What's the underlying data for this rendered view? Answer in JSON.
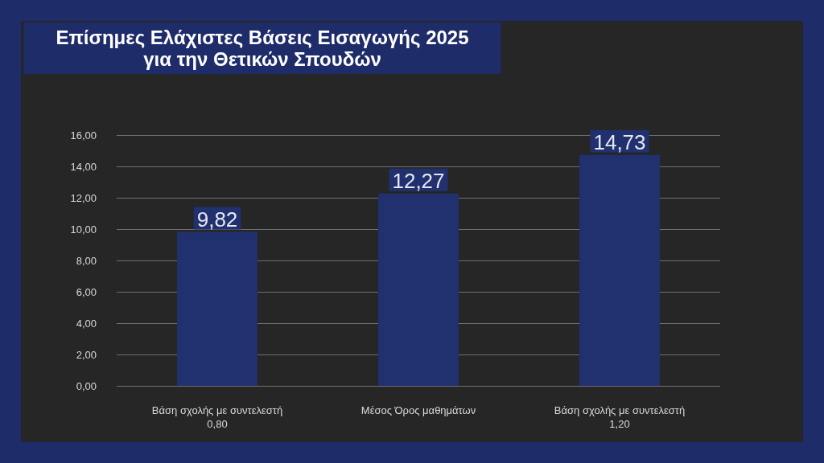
{
  "chart_data": {
    "type": "bar",
    "title": "Επίσημες Ελάχιστες Βάσεις Εισαγωγής 2025\nγια την Θετικών Σπουδών",
    "categories": [
      "Βάση σχολής με συντελεστή 0,80",
      "Μέσος Όρος μαθημάτων",
      "Βάση σχολής με συντελεστή 1,20"
    ],
    "values": [
      9.82,
      12.27,
      14.73
    ],
    "color": "#21306e",
    "value_labels": [
      "9,82",
      "12,27",
      "14,73"
    ],
    "ylim": [
      0,
      16
    ],
    "yticks": [
      {
        "value": 0,
        "label": "0,00"
      },
      {
        "value": 2,
        "label": "2,00"
      },
      {
        "value": 4,
        "label": "4,00"
      },
      {
        "value": 6,
        "label": "6,00"
      },
      {
        "value": 8,
        "label": "8,00"
      },
      {
        "value": 10,
        "label": "10,00"
      },
      {
        "value": 12,
        "label": "12,00"
      },
      {
        "value": 14,
        "label": "14,00"
      },
      {
        "value": 16,
        "label": "16,00"
      }
    ],
    "grid": "y"
  }
}
